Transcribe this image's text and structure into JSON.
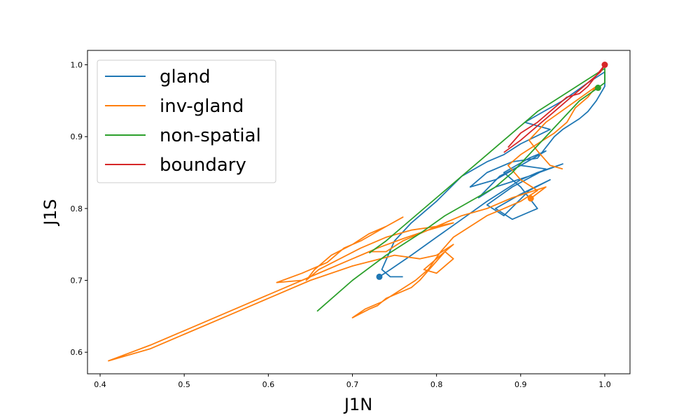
{
  "chart_data": {
    "type": "line",
    "title": "",
    "xlabel": "J1N",
    "ylabel": "J1S",
    "xlim": [
      0.385,
      1.03
    ],
    "ylim": [
      0.57,
      1.02
    ],
    "xticks": [
      0.4,
      0.5,
      0.6,
      0.7,
      0.8,
      0.9,
      1.0
    ],
    "xtick_labels": [
      "0.4",
      "0.5",
      "0.6",
      "0.7",
      "0.8",
      "0.9",
      "1.0"
    ],
    "yticks": [
      0.6,
      0.7,
      0.8,
      0.9,
      1.0
    ],
    "ytick_labels": [
      "0.6",
      "0.7",
      "0.8",
      "0.9",
      "1.0"
    ],
    "grid": false,
    "legend_position": "top-left",
    "series": [
      {
        "name": "gland",
        "color": "#1f77b4",
        "marker_end": [
          0.732,
          0.705
        ],
        "points": [
          [
            0.732,
            0.705
          ],
          [
            0.745,
            0.715
          ],
          [
            0.77,
            0.735
          ],
          [
            0.8,
            0.76
          ],
          [
            0.83,
            0.785
          ],
          [
            0.86,
            0.81
          ],
          [
            0.88,
            0.825
          ],
          [
            0.9,
            0.84
          ],
          [
            0.92,
            0.85
          ],
          [
            0.95,
            0.862
          ],
          [
            0.91,
            0.845
          ],
          [
            0.87,
            0.83
          ],
          [
            0.85,
            0.815
          ],
          [
            0.875,
            0.845
          ],
          [
            0.9,
            0.86
          ],
          [
            0.93,
            0.855
          ],
          [
            0.89,
            0.83
          ],
          [
            0.86,
            0.805
          ],
          [
            0.88,
            0.79
          ],
          [
            0.91,
            0.825
          ],
          [
            0.935,
            0.84
          ],
          [
            0.9,
            0.82
          ],
          [
            0.87,
            0.8
          ],
          [
            0.89,
            0.785
          ],
          [
            0.92,
            0.8
          ],
          [
            0.9,
            0.83
          ],
          [
            0.88,
            0.85
          ],
          [
            0.91,
            0.87
          ],
          [
            0.93,
            0.88
          ],
          [
            0.9,
            0.86
          ],
          [
            0.87,
            0.84
          ],
          [
            0.84,
            0.83
          ],
          [
            0.86,
            0.85
          ],
          [
            0.89,
            0.865
          ],
          [
            0.92,
            0.87
          ],
          [
            0.94,
            0.9
          ],
          [
            0.95,
            0.91
          ],
          [
            0.97,
            0.925
          ],
          [
            0.98,
            0.935
          ],
          [
            0.99,
            0.95
          ],
          [
            1.0,
            0.97
          ],
          [
            1.0,
            0.99
          ],
          [
            0.98,
            0.975
          ],
          [
            0.95,
            0.95
          ],
          [
            0.92,
            0.93
          ],
          [
            0.905,
            0.92
          ],
          [
            0.935,
            0.91
          ],
          [
            0.9,
            0.89
          ],
          [
            0.88,
            0.875
          ],
          [
            0.86,
            0.865
          ],
          [
            0.83,
            0.845
          ],
          [
            0.8,
            0.81
          ],
          [
            0.77,
            0.78
          ],
          [
            0.75,
            0.755
          ],
          [
            0.735,
            0.715
          ],
          [
            0.745,
            0.705
          ],
          [
            0.76,
            0.705
          ]
        ]
      },
      {
        "name": "inv-gland",
        "color": "#ff7f0e",
        "marker_end": [
          0.912,
          0.814
        ],
        "points": [
          [
            0.912,
            0.814
          ],
          [
            0.93,
            0.83
          ],
          [
            0.89,
            0.815
          ],
          [
            0.86,
            0.8
          ],
          [
            0.83,
            0.79
          ],
          [
            0.8,
            0.775
          ],
          [
            0.78,
            0.765
          ],
          [
            0.76,
            0.755
          ],
          [
            0.74,
            0.74
          ],
          [
            0.72,
            0.74
          ],
          [
            0.7,
            0.73
          ],
          [
            0.67,
            0.715
          ],
          [
            0.64,
            0.7
          ],
          [
            0.61,
            0.697
          ],
          [
            0.64,
            0.71
          ],
          [
            0.67,
            0.725
          ],
          [
            0.69,
            0.745
          ],
          [
            0.71,
            0.755
          ],
          [
            0.74,
            0.775
          ],
          [
            0.76,
            0.788
          ],
          [
            0.74,
            0.775
          ],
          [
            0.72,
            0.765
          ],
          [
            0.7,
            0.75
          ],
          [
            0.675,
            0.735
          ],
          [
            0.655,
            0.715
          ],
          [
            0.645,
            0.7
          ],
          [
            0.66,
            0.715
          ],
          [
            0.685,
            0.73
          ],
          [
            0.71,
            0.745
          ],
          [
            0.74,
            0.76
          ],
          [
            0.77,
            0.77
          ],
          [
            0.8,
            0.775
          ],
          [
            0.82,
            0.78
          ],
          [
            0.79,
            0.77
          ],
          [
            0.76,
            0.758
          ],
          [
            0.73,
            0.745
          ],
          [
            0.7,
            0.73
          ],
          [
            0.66,
            0.71
          ],
          [
            0.62,
            0.69
          ],
          [
            0.58,
            0.67
          ],
          [
            0.54,
            0.65
          ],
          [
            0.5,
            0.63
          ],
          [
            0.46,
            0.61
          ],
          [
            0.41,
            0.588
          ],
          [
            0.46,
            0.605
          ],
          [
            0.5,
            0.625
          ],
          [
            0.55,
            0.65
          ],
          [
            0.6,
            0.675
          ],
          [
            0.65,
            0.7
          ],
          [
            0.7,
            0.72
          ],
          [
            0.75,
            0.735
          ],
          [
            0.78,
            0.73
          ],
          [
            0.8,
            0.735
          ],
          [
            0.82,
            0.75
          ],
          [
            0.8,
            0.73
          ],
          [
            0.785,
            0.715
          ],
          [
            0.8,
            0.71
          ],
          [
            0.82,
            0.73
          ],
          [
            0.81,
            0.74
          ],
          [
            0.795,
            0.72
          ],
          [
            0.78,
            0.7
          ],
          [
            0.77,
            0.69
          ],
          [
            0.76,
            0.685
          ],
          [
            0.75,
            0.68
          ],
          [
            0.74,
            0.675
          ],
          [
            0.73,
            0.665
          ],
          [
            0.72,
            0.66
          ],
          [
            0.7,
            0.648
          ],
          [
            0.715,
            0.66
          ],
          [
            0.735,
            0.67
          ],
          [
            0.755,
            0.685
          ],
          [
            0.775,
            0.7
          ],
          [
            0.79,
            0.715
          ],
          [
            0.805,
            0.74
          ],
          [
            0.82,
            0.76
          ],
          [
            0.84,
            0.775
          ],
          [
            0.86,
            0.79
          ],
          [
            0.88,
            0.8
          ],
          [
            0.9,
            0.81
          ],
          [
            0.92,
            0.825
          ],
          [
            0.9,
            0.84
          ],
          [
            0.885,
            0.86
          ],
          [
            0.9,
            0.875
          ],
          [
            0.92,
            0.89
          ],
          [
            0.94,
            0.905
          ],
          [
            0.955,
            0.92
          ],
          [
            0.965,
            0.94
          ],
          [
            0.98,
            0.955
          ],
          [
            0.99,
            0.97
          ],
          [
            0.96,
            0.945
          ],
          [
            0.93,
            0.92
          ],
          [
            0.91,
            0.895
          ],
          [
            0.92,
            0.88
          ],
          [
            0.935,
            0.86
          ],
          [
            0.95,
            0.855
          ]
        ]
      },
      {
        "name": "non-spatial",
        "color": "#2ca02c",
        "marker_end": [
          0.992,
          0.968
        ],
        "points": [
          [
            0.658,
            0.657
          ],
          [
            0.7,
            0.7
          ],
          [
            0.74,
            0.735
          ],
          [
            0.78,
            0.765
          ],
          [
            0.81,
            0.79
          ],
          [
            0.84,
            0.81
          ],
          [
            0.87,
            0.83
          ],
          [
            0.89,
            0.85
          ],
          [
            0.91,
            0.875
          ],
          [
            0.93,
            0.9
          ],
          [
            0.95,
            0.925
          ],
          [
            0.97,
            0.95
          ],
          [
            0.992,
            0.968
          ],
          [
            1.0,
            0.975
          ],
          [
            1.0,
            0.995
          ],
          [
            0.98,
            0.98
          ],
          [
            0.96,
            0.965
          ],
          [
            0.94,
            0.95
          ],
          [
            0.92,
            0.935
          ],
          [
            0.9,
            0.915
          ],
          [
            0.88,
            0.895
          ],
          [
            0.86,
            0.875
          ],
          [
            0.84,
            0.855
          ],
          [
            0.82,
            0.835
          ],
          [
            0.8,
            0.815
          ],
          [
            0.78,
            0.795
          ],
          [
            0.76,
            0.775
          ],
          [
            0.74,
            0.755
          ],
          [
            0.72,
            0.738
          ]
        ]
      },
      {
        "name": "boundary",
        "color": "#d62728",
        "marker_end": [
          1.0,
          1.0
        ],
        "points": [
          [
            0.88,
            0.878
          ],
          [
            0.9,
            0.895
          ],
          [
            0.92,
            0.915
          ],
          [
            0.94,
            0.935
          ],
          [
            0.96,
            0.955
          ],
          [
            0.975,
            0.97
          ],
          [
            0.985,
            0.98
          ],
          [
            0.995,
            0.99
          ],
          [
            1.0,
            1.0
          ],
          [
            0.99,
            0.985
          ],
          [
            0.98,
            0.97
          ],
          [
            0.97,
            0.96
          ],
          [
            0.955,
            0.955
          ],
          [
            0.94,
            0.94
          ],
          [
            0.92,
            0.92
          ],
          [
            0.9,
            0.905
          ],
          [
            0.885,
            0.885
          ]
        ]
      }
    ]
  }
}
